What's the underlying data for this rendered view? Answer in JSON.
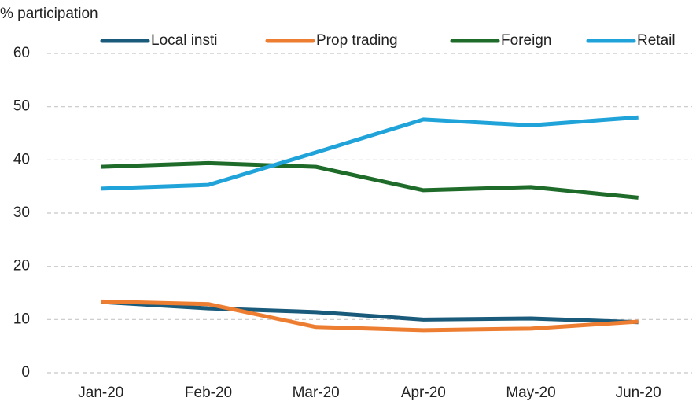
{
  "chart_data": {
    "type": "line",
    "y_label": "% participation",
    "categories": [
      "Jan-20",
      "Feb-20",
      "Mar-20",
      "Apr-20",
      "May-20",
      "Jun-20"
    ],
    "series": [
      {
        "name": "Local insti",
        "color": "#1a5a7a",
        "values": [
          13.3,
          12.1,
          11.4,
          10.0,
          10.2,
          9.5
        ]
      },
      {
        "name": "Prop trading",
        "color": "#ed7d31",
        "values": [
          13.4,
          12.9,
          8.6,
          8.0,
          8.3,
          9.6
        ]
      },
      {
        "name": "Foreign",
        "color": "#1e6b2a",
        "values": [
          38.7,
          39.4,
          38.7,
          34.3,
          34.9,
          32.9
        ]
      },
      {
        "name": "Retail",
        "color": "#1fa3d9",
        "values": [
          34.6,
          35.3,
          41.4,
          47.6,
          46.5,
          48.0
        ]
      }
    ],
    "ylim": [
      0,
      60
    ],
    "yticks": [
      0,
      10,
      20,
      30,
      40,
      50,
      60
    ],
    "grid": true
  }
}
